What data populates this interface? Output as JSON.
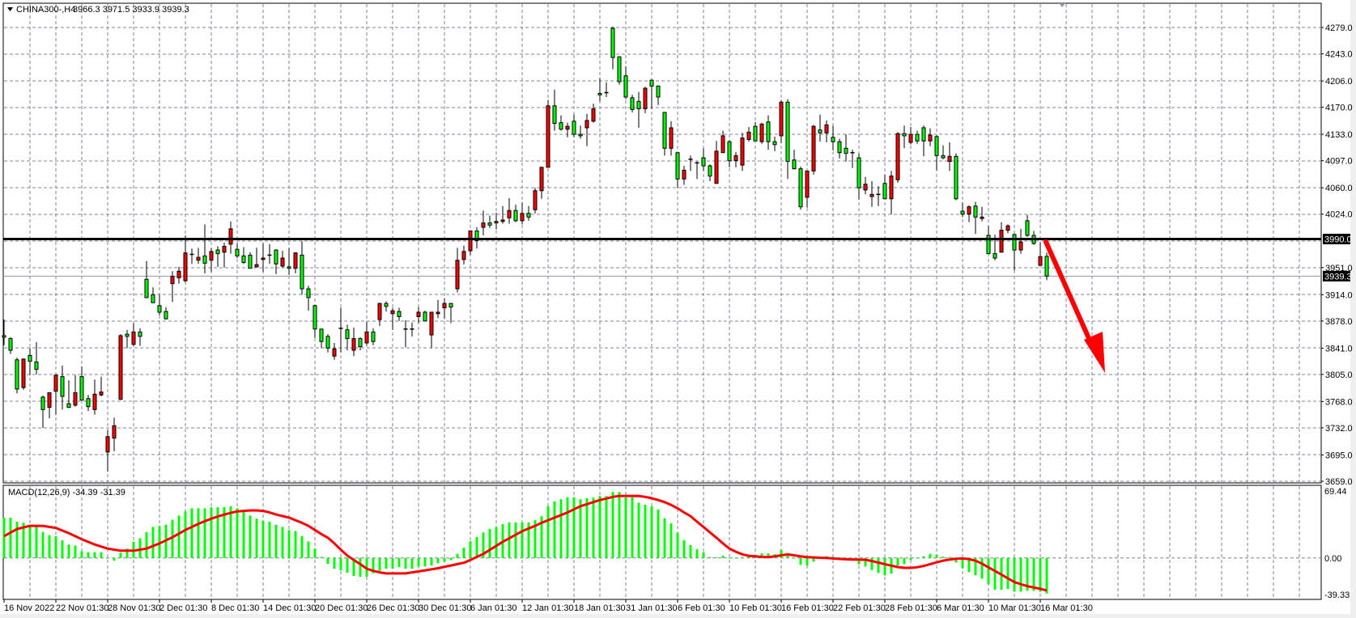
{
  "header": {
    "menu_icon": "triangle-down-icon",
    "symbol": "CHINA300-,H4",
    "ohlc": "3966.3 3971.5 3933.9 3939.3"
  },
  "colors": {
    "bull_body": "#ff0000",
    "bear_body": "#00ff00",
    "candle_outline": "#000000",
    "grid": "#7a8794",
    "macd_histogram": "#00ff00",
    "macd_signal": "#ff0000",
    "arrow": "#ff0000",
    "level_line": "#000000"
  },
  "price_axis": {
    "labels": [
      "4279.0",
      "4243.0",
      "4206.0",
      "4170.0",
      "4133.0",
      "4097.0",
      "4060.0",
      "4024.0",
      "3951.0",
      "3914.0",
      "3878.0",
      "3841.0",
      "3805.0",
      "3768.0",
      "3732.0",
      "3695.0",
      "3659.0"
    ]
  },
  "levels": {
    "horizontal_line": {
      "price": 3990.0,
      "label": "3990.0"
    },
    "current_price": {
      "price": 3939.3,
      "label": "3939.3"
    }
  },
  "time_axis": {
    "labels": [
      "16 Nov 2022",
      "22 Nov 01:30",
      "28 Nov 01:30",
      "2 Dec 01:30",
      "8 Dec 01:30",
      "14 Dec 01:30",
      "20 Dec 01:30",
      "26 Dec 01:30",
      "30 Dec 01:30",
      "6 Jan 01:30",
      "12 Jan 01:30",
      "18 Jan 01:30",
      "31 Jan 01:30",
      "6 Feb 01:30",
      "10 Feb 01:30",
      "16 Feb 01:30",
      "22 Feb 01:30",
      "28 Feb 01:30",
      "6 Mar 01:30",
      "10 Mar 01:30",
      "16 Mar 01:30"
    ]
  },
  "annotation": {
    "type": "arrow-down",
    "icon": "red-arrow-icon"
  },
  "macd": {
    "label": "MACD(12,26,9) -34.39 -31.39",
    "axis_labels": {
      "top": "69.44",
      "zero": "0.00",
      "bottom": "-39.33"
    },
    "max": 69.44,
    "min": -39.33,
    "histogram": [
      39,
      39,
      35,
      34,
      31,
      31,
      25,
      22,
      21,
      17,
      13,
      12,
      6.5,
      5.6,
      5.6,
      5.6,
      0,
      -2.6,
      5,
      9,
      15.6,
      19,
      25,
      30,
      31,
      32,
      37,
      41,
      45,
      48,
      48,
      48,
      49,
      49,
      49,
      50,
      48,
      45,
      41,
      38,
      36,
      35,
      32,
      30,
      27,
      26,
      21,
      16,
      9,
      1,
      -5.7,
      -10.4,
      -12,
      -14.3,
      -17.4,
      -18.2,
      -18.2,
      -14.8,
      -12.5,
      -10.4,
      -10.4,
      -8.9,
      -10.4,
      -10.4,
      -8.3,
      -8.3,
      -7.3,
      -5.2,
      -3.6,
      -2.1,
      3.9,
      9.9,
      16.1,
      20.3,
      24.7,
      28.1,
      29.9,
      32.6,
      34.4,
      34.4,
      34.4,
      34.4,
      36.5,
      40.4,
      50,
      54.7,
      56.8,
      58.6,
      58.6,
      56.8,
      57.8,
      58.3,
      59.9,
      59.9,
      63.8,
      63.8,
      58.6,
      58.6,
      53.4,
      51.6,
      50,
      46.9,
      38.3,
      33.3,
      24.2,
      17.2,
      12.5,
      8.3,
      5.5,
      0.8,
      0.8,
      2.1,
      0,
      0,
      0.8,
      1,
      2.6,
      4.4,
      4.4,
      3.6,
      7.8,
      2.6,
      0,
      -6.8,
      -7.3,
      -3.6,
      0,
      1.6,
      1,
      0.5,
      0,
      -0.5,
      -6,
      -8.3,
      -11.7,
      -14.6,
      -16.9,
      -15.1,
      -7.3,
      -6,
      -2.1,
      0,
      1.6,
      3.9,
      3.1,
      1.3,
      1,
      -4.4,
      -9.9,
      -13.8,
      -16.7,
      -20.1,
      -25.5,
      -30.7,
      -30.7,
      -29.9,
      -32.6,
      -32.6,
      -31.8,
      -31.8,
      -32.6,
      -34.39
    ],
    "signal": [
      21,
      24.5,
      28,
      29.5,
      31,
      31,
      31,
      30,
      29,
      26.5,
      24,
      21,
      18,
      15.5,
      13,
      11,
      9,
      8,
      7,
      7,
      7,
      8,
      9,
      11.5,
      14,
      17,
      20,
      23.5,
      27,
      30,
      33,
      35.5,
      38,
      40,
      42,
      43.5,
      45,
      45.5,
      46,
      46,
      45.5,
      44,
      42,
      40.5,
      39,
      36.5,
      34,
      31,
      27,
      23,
      19.5,
      14,
      8,
      2.3,
      -2,
      -6,
      -10.4,
      -12.5,
      -14,
      -15,
      -15,
      -15,
      -15,
      -14,
      -13,
      -12,
      -11,
      -10,
      -8.6,
      -7.3,
      -6,
      -4.7,
      -2,
      1,
      3.9,
      7.8,
      11.7,
      15.6,
      19,
      22.5,
      25.8,
      28.5,
      31,
      34,
      36.5,
      39,
      41.4,
      44,
      47,
      50,
      52,
      54,
      56,
      57.5,
      59,
      60,
      60,
      60,
      60,
      59,
      57.8,
      56,
      54,
      51.3,
      48,
      44,
      40.4,
      35,
      30,
      24.7,
      19.5,
      14,
      9.1,
      6,
      3.5,
      2.1,
      1.5,
      1,
      0.8,
      1.5,
      2.5,
      3.4,
      2.5,
      1.5,
      0.8,
      0.5,
      0.2,
      0,
      -0.5,
      -1,
      -1.3,
      -1.5,
      -1.7,
      -1.8,
      -3,
      -4.5,
      -6,
      -7.5,
      -8.8,
      -9.6,
      -9.6,
      -9,
      -7.8,
      -6,
      -4.3,
      -2.6,
      -1.5,
      -0.8,
      -0.5,
      -1.2,
      -2.6,
      -5.5,
      -9.1,
      -12.6,
      -16.1,
      -19.8,
      -23.4,
      -25.4,
      -27.3,
      -28.6,
      -29.9,
      -31.39
    ]
  },
  "chart_data": {
    "type": "candlestick",
    "ylim": [
      3659,
      4279
    ],
    "ohlc_order": [
      "open",
      "high",
      "low",
      "close"
    ],
    "candles": [
      [
        3858,
        3880,
        3845,
        3856
      ],
      [
        3854,
        3856,
        3833,
        3838
      ],
      [
        3825,
        3828,
        3779,
        3785
      ],
      [
        3787,
        3827,
        3784,
        3826
      ],
      [
        3831,
        3841,
        3804,
        3823
      ],
      [
        3822,
        3849,
        3805,
        3812
      ],
      [
        3774,
        3776,
        3732,
        3757
      ],
      [
        3760,
        3781,
        3745,
        3780
      ],
      [
        3782,
        3805,
        3750,
        3804
      ],
      [
        3802,
        3817,
        3757,
        3775
      ],
      [
        3765,
        3797,
        3759,
        3760
      ],
      [
        3763,
        3804,
        3761,
        3780
      ],
      [
        3802,
        3816,
        3769,
        3770
      ],
      [
        3772,
        3777,
        3755,
        3761
      ],
      [
        3757,
        3798,
        3750,
        3778
      ],
      [
        3777,
        3802,
        3775,
        3781
      ],
      [
        3699,
        3729,
        3672,
        3720
      ],
      [
        3718,
        3746,
        3700,
        3735
      ],
      [
        3771,
        3860,
        3770,
        3858
      ],
      [
        3860,
        3866,
        3841,
        3857
      ],
      [
        3846,
        3875,
        3844,
        3863
      ],
      [
        3863,
        3868,
        3844,
        3857
      ],
      [
        3935,
        3960,
        3909,
        3910
      ],
      [
        3914,
        3924,
        3903,
        3903
      ],
      [
        3899,
        3914,
        3886,
        3890
      ],
      [
        3891,
        3897,
        3880,
        3881
      ],
      [
        3929,
        3946,
        3904,
        3939
      ],
      [
        3937,
        3952,
        3929,
        3946
      ],
      [
        3933,
        3995,
        3931,
        3971
      ],
      [
        3968,
        3977,
        3956,
        3969
      ],
      [
        3961,
        3978,
        3956,
        3965
      ],
      [
        3967,
        4010,
        3943,
        3957
      ],
      [
        3961,
        3978,
        3945,
        3973
      ],
      [
        3975,
        3980,
        3952,
        3970
      ],
      [
        3972,
        3985,
        3951,
        3980
      ],
      [
        3983,
        4014,
        3970,
        4004
      ],
      [
        3976,
        3984,
        3964,
        3967
      ],
      [
        3967,
        3979,
        3956,
        3958
      ],
      [
        3968,
        3972,
        3950,
        3950
      ],
      [
        3952,
        3978,
        3951,
        3955
      ],
      [
        3962,
        3984,
        3945,
        3964
      ],
      [
        3968,
        3983,
        3956,
        3968
      ],
      [
        3975,
        3976,
        3942,
        3956
      ],
      [
        3953,
        3974,
        3951,
        3964
      ],
      [
        3952,
        3978,
        3941,
        3950
      ],
      [
        3950,
        3972,
        3943,
        3971
      ],
      [
        3968,
        3987,
        3914,
        3922
      ],
      [
        3922,
        3926,
        3892,
        3910
      ],
      [
        3899,
        3900,
        3855,
        3867
      ],
      [
        3867,
        3867,
        3841,
        3850
      ],
      [
        3857,
        3860,
        3835,
        3841
      ],
      [
        3830,
        3848,
        3825,
        3840
      ],
      [
        3867,
        3896,
        3835,
        3868
      ],
      [
        3866,
        3873,
        3838,
        3854
      ],
      [
        3838,
        3869,
        3830,
        3854
      ],
      [
        3854,
        3856,
        3838,
        3843
      ],
      [
        3848,
        3877,
        3845,
        3863
      ],
      [
        3863,
        3868,
        3845,
        3850
      ],
      [
        3880,
        3903,
        3871,
        3902
      ],
      [
        3902,
        3905,
        3891,
        3898
      ],
      [
        3888,
        3896,
        3866,
        3892
      ],
      [
        3891,
        3896,
        3878,
        3884
      ],
      [
        3866,
        3879,
        3842,
        3867
      ],
      [
        3866,
        3876,
        3857,
        3867
      ],
      [
        3884,
        3897,
        3875,
        3890
      ],
      [
        3890,
        3892,
        3878,
        3878
      ],
      [
        3859,
        3890,
        3841,
        3890
      ],
      [
        3888,
        3907,
        3882,
        3890
      ],
      [
        3896,
        3909,
        3881,
        3902
      ],
      [
        3902,
        3902,
        3875,
        3897
      ],
      [
        3922,
        3978,
        3917,
        3961
      ],
      [
        3962,
        3981,
        3955,
        3973
      ],
      [
        3974,
        4002,
        3968,
        4001
      ],
      [
        4001,
        4006,
        3977,
        3988
      ],
      [
        4006,
        4029,
        3995,
        4012
      ],
      [
        4012,
        4022,
        4005,
        4009
      ],
      [
        4012,
        4026,
        4003,
        4014
      ],
      [
        4014,
        4035,
        4011,
        4016
      ],
      [
        4019,
        4046,
        4011,
        4029
      ],
      [
        4029,
        4037,
        4013,
        4015
      ],
      [
        4015,
        4040,
        4010,
        4025
      ],
      [
        4025,
        4035,
        4015,
        4020
      ],
      [
        4030,
        4060,
        4025,
        4056
      ],
      [
        4056,
        4088,
        4045,
        4088
      ],
      [
        4088,
        4180,
        4088,
        4172
      ],
      [
        4172,
        4194,
        4138,
        4148
      ],
      [
        4149,
        4159,
        4138,
        4140
      ],
      [
        4140,
        4149,
        4129,
        4144
      ],
      [
        4151,
        4160,
        4129,
        4133
      ],
      [
        4133,
        4145,
        4127,
        4131
      ],
      [
        4142,
        4161,
        4117,
        4152
      ],
      [
        4151,
        4175,
        4149,
        4168
      ],
      [
        4189,
        4210,
        4178,
        4187
      ],
      [
        4189,
        4204,
        4184,
        4190
      ],
      [
        4278,
        4280,
        4222,
        4238
      ],
      [
        4239,
        4239,
        4201,
        4205
      ],
      [
        4213,
        4226,
        4181,
        4184
      ],
      [
        4183,
        4187,
        4163,
        4167
      ],
      [
        4178,
        4191,
        4142,
        4168
      ],
      [
        4168,
        4198,
        4162,
        4196
      ],
      [
        4207,
        4208,
        4168,
        4199
      ],
      [
        4199,
        4200,
        4173,
        4184
      ],
      [
        4163,
        4163,
        4104,
        4114
      ],
      [
        4114,
        4151,
        4104,
        4142
      ],
      [
        4108,
        4108,
        4060,
        4072
      ],
      [
        4072,
        4090,
        4064,
        4084
      ],
      [
        4098,
        4104,
        4083,
        4099
      ],
      [
        4093,
        4096,
        4072,
        4094
      ],
      [
        4101,
        4114,
        4083,
        4090
      ],
      [
        4090,
        4092,
        4069,
        4076
      ],
      [
        4066,
        4124,
        4066,
        4110
      ],
      [
        4108,
        4138,
        4108,
        4131
      ],
      [
        4123,
        4125,
        4088,
        4097
      ],
      [
        4097,
        4109,
        4088,
        4104
      ],
      [
        4091,
        4135,
        4083,
        4128
      ],
      [
        4126,
        4143,
        4123,
        4136
      ],
      [
        4144,
        4150,
        4124,
        4124
      ],
      [
        4123,
        4149,
        4120,
        4147
      ],
      [
        4150,
        4159,
        4112,
        4123
      ],
      [
        4123,
        4130,
        4110,
        4119
      ],
      [
        4131,
        4180,
        4121,
        4177
      ],
      [
        4177,
        4181,
        4072,
        4096
      ],
      [
        4098,
        4112,
        4085,
        4086
      ],
      [
        4086,
        4089,
        4030,
        4034
      ],
      [
        4047,
        4083,
        4033,
        4083
      ],
      [
        4083,
        4146,
        4078,
        4144
      ],
      [
        4139,
        4160,
        4123,
        4135
      ],
      [
        4135,
        4152,
        4122,
        4146
      ],
      [
        4129,
        4145,
        4111,
        4123
      ],
      [
        4123,
        4127,
        4100,
        4108
      ],
      [
        4114,
        4133,
        4096,
        4107
      ],
      [
        4107,
        4112,
        4087,
        4108
      ],
      [
        4101,
        4107,
        4044,
        4060
      ],
      [
        4057,
        4075,
        4051,
        4065
      ],
      [
        4048,
        4069,
        4034,
        4051
      ],
      [
        4050,
        4062,
        4035,
        4051
      ],
      [
        4066,
        4078,
        4045,
        4045
      ],
      [
        4045,
        4083,
        4024,
        4076
      ],
      [
        4071,
        4136,
        4067,
        4134
      ],
      [
        4134,
        4145,
        4114,
        4131
      ],
      [
        4122,
        4143,
        4119,
        4133
      ],
      [
        4133,
        4138,
        4120,
        4124
      ],
      [
        4142,
        4145,
        4103,
        4124
      ],
      [
        4124,
        4141,
        4117,
        4132
      ],
      [
        4130,
        4132,
        4084,
        4104
      ],
      [
        4104,
        4118,
        4099,
        4101
      ],
      [
        4096,
        4122,
        4083,
        4103
      ],
      [
        4103,
        4107,
        4043,
        4045
      ],
      [
        4028,
        4040,
        4020,
        4024
      ],
      [
        4024,
        4036,
        4013,
        4034
      ],
      [
        4035,
        4041,
        3997,
        4020
      ],
      [
        4018,
        4034,
        4014,
        4020
      ],
      [
        3995,
        4008,
        3970,
        3970
      ],
      [
        3970,
        3996,
        3961,
        3964
      ],
      [
        3972,
        4013,
        3972,
        4002
      ],
      [
        4002,
        4010,
        3998,
        4008
      ],
      [
        3996,
        3998,
        3947,
        3975
      ],
      [
        3975,
        4004,
        3970,
        3986
      ],
      [
        4015,
        4023,
        3993,
        3995
      ],
      [
        3995,
        4001,
        3982,
        3984
      ],
      [
        3954,
        3986,
        3954,
        3966
      ],
      [
        3966.3,
        3971.5,
        3933.9,
        3939.3
      ]
    ]
  }
}
